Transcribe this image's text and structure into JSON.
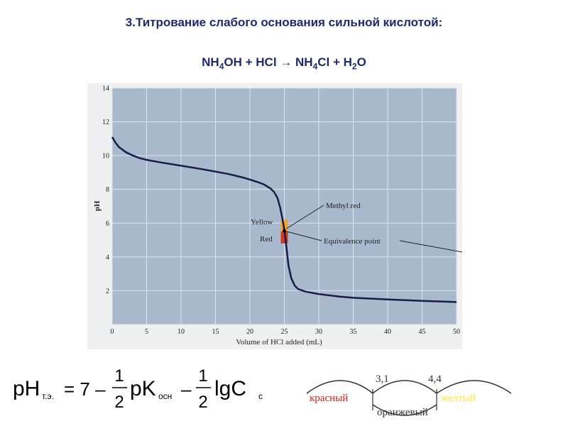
{
  "title": "3.Титрование слабого основания сильной кислотой:",
  "equation": {
    "a": "NH",
    "a_sub": "4",
    "b": "OH + HCl → NH",
    "b_sub": "4",
    "c": "Cl + H",
    "c_sub": "2",
    "d": "O"
  },
  "chart_data": {
    "type": "line",
    "xlabel": "Volume of HCl added (mL)",
    "ylabel": "pH",
    "xlim": [
      0,
      50
    ],
    "ylim": [
      0,
      14
    ],
    "x_ticks": [
      0,
      5,
      10,
      15,
      20,
      25,
      30,
      35,
      40,
      45,
      50
    ],
    "y_ticks": [
      2,
      4,
      6,
      8,
      10,
      12,
      14
    ],
    "grid": true,
    "series": [
      {
        "x": [
          0,
          0.5,
          1,
          2,
          3,
          4,
          5,
          7,
          10,
          13,
          15,
          17,
          19,
          20,
          21,
          22,
          23,
          23.5,
          24,
          24.4,
          24.7,
          25,
          25.3,
          25.6,
          26,
          26.5,
          27,
          28,
          30,
          33,
          35,
          40,
          45,
          50
        ],
        "y": [
          11.1,
          10.75,
          10.5,
          10.2,
          10.0,
          9.85,
          9.75,
          9.6,
          9.4,
          9.2,
          9.05,
          8.9,
          8.7,
          8.58,
          8.45,
          8.3,
          8.05,
          7.85,
          7.5,
          6.9,
          6.3,
          5.6,
          4.6,
          3.5,
          2.75,
          2.3,
          2.1,
          1.95,
          1.8,
          1.65,
          1.58,
          1.48,
          1.4,
          1.33
        ]
      }
    ],
    "indicator": {
      "name": "Methyl red",
      "range": [
        4.8,
        6.2
      ],
      "x": 25,
      "colors": [
        "#f2a531",
        "#d23a1f"
      ]
    },
    "labels": {
      "yellow": "Yellow",
      "red": "Red",
      "methyl_red": "Methyl red",
      "equivalence": "Equivalence point"
    },
    "equivalence_point": {
      "x": 25,
      "y": 5.55
    }
  },
  "formula": {
    "ph": "pH",
    "ph_sub": "т.э.",
    "eq": "= 7 –",
    "half": "1",
    "two": "2",
    "pk": "pK",
    "pk_sub": "осн",
    "minus": "–",
    "lg": "lgC",
    "lg_sub": "c"
  },
  "indicator_scale": {
    "value1": "3,1",
    "value2": "4,4",
    "red_label": "красный",
    "orange_label": "оранжевый",
    "yellow_label": "желтый",
    "colors": {
      "red": "#d62020",
      "yellow": "#ffe633",
      "text": "#333333"
    }
  }
}
